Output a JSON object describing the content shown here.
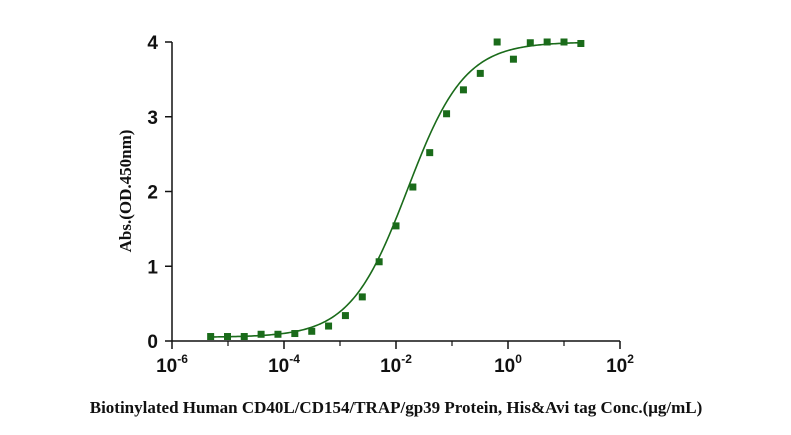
{
  "chart_data": {
    "type": "scatter",
    "title": "",
    "xlabel": "Biotinylated Human CD40L/CD154/TRAP/gp39 Protein, His&Avi tag Conc.(μg/mL)",
    "ylabel": "Abs.(OD.450nm)",
    "xscale": "log",
    "xlim": [
      1e-06,
      100
    ],
    "ylim": [
      0,
      4
    ],
    "x_ticks": [
      {
        "base": "10",
        "exp": "-6",
        "value": 1e-06
      },
      {
        "base": "10",
        "exp": "-4",
        "value": 0.0001
      },
      {
        "base": "10",
        "exp": "-2",
        "value": 0.01
      },
      {
        "base": "10",
        "exp": "0",
        "value": 1
      },
      {
        "base": "10",
        "exp": "2",
        "value": 100
      }
    ],
    "y_ticks": [
      "0",
      "1",
      "2",
      "3",
      "4"
    ],
    "grid": false,
    "series": [
      {
        "color": "#1a6b1a",
        "marker": "square",
        "x": [
          4.9e-06,
          9.8e-06,
          1.95e-05,
          3.9e-05,
          7.8e-05,
          0.000156,
          0.000313,
          0.000625,
          0.00125,
          0.0025,
          0.005,
          0.01,
          0.02,
          0.04,
          0.08,
          0.16,
          0.32,
          0.64,
          1.25,
          2.5,
          5,
          10,
          20
        ],
        "y": [
          0.06,
          0.06,
          0.06,
          0.09,
          0.09,
          0.1,
          0.13,
          0.2,
          0.34,
          0.59,
          1.06,
          1.54,
          2.06,
          2.52,
          3.04,
          3.36,
          3.58,
          4.0,
          3.77,
          3.99,
          4.0,
          4.0,
          3.98
        ]
      }
    ],
    "fit": {
      "type": "4PL",
      "bottom": 0.05,
      "top": 4.0,
      "ec50": 0.016,
      "hill": 0.85,
      "color": "#1a6b1a"
    }
  }
}
